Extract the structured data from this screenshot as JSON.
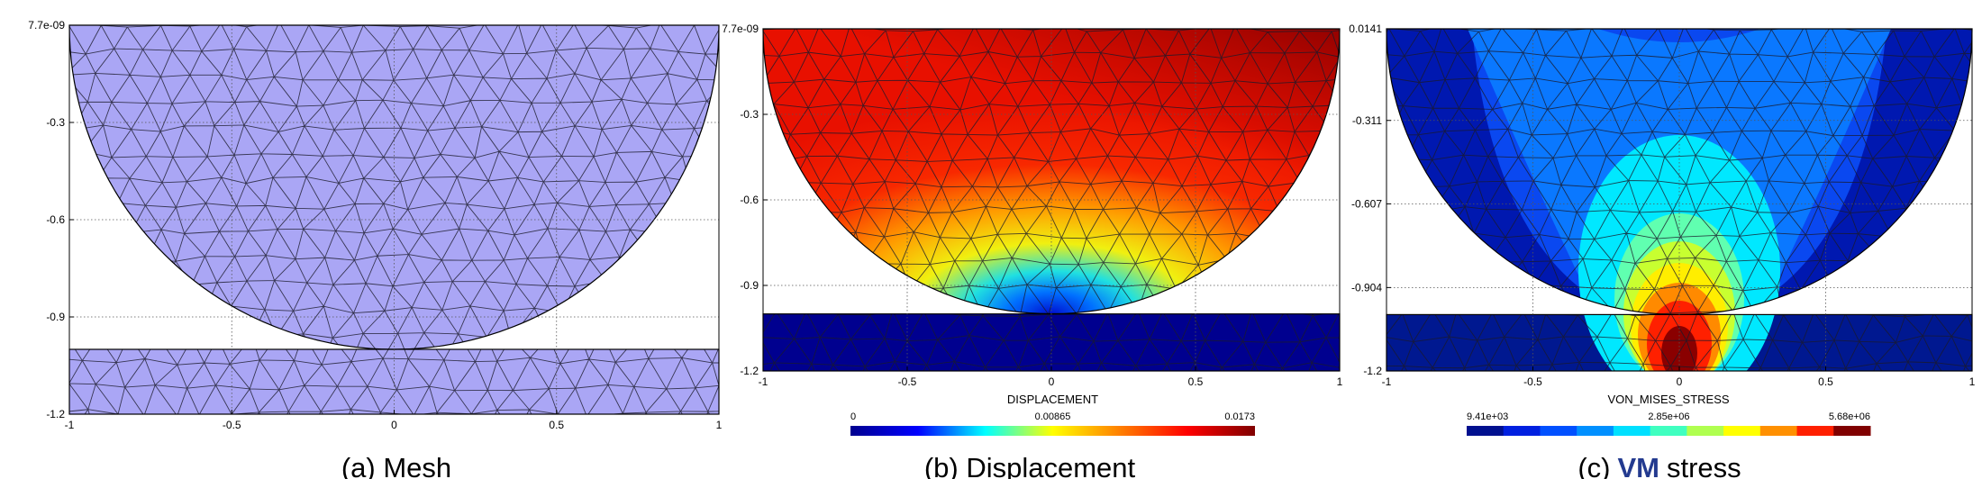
{
  "chart_data": [
    {
      "type": "mesh",
      "caption": "(a) Mesh",
      "color": "#aaa6f5",
      "grid": true,
      "xlim": [
        -1,
        1
      ],
      "ylim": [
        -1.2,
        7.7e-09
      ],
      "xticks": [
        -1,
        -0.5,
        0,
        0.5,
        1
      ],
      "yticks": [
        {
          "value": 7.7e-09,
          "label": "7.7e-09"
        },
        -0.3,
        -0.6,
        -0.9,
        -1.2
      ]
    },
    {
      "type": "contour",
      "caption": "(b) Displacement",
      "grid": true,
      "xlim": [
        -1,
        1
      ],
      "ylim": [
        -1.2,
        7.7e-09
      ],
      "xticks": [
        -1,
        -0.5,
        0,
        0.5,
        1
      ],
      "yticks": [
        {
          "value": 7.7e-09,
          "label": "7.7e-09"
        },
        -0.3,
        -0.6,
        -0.9,
        -1.2
      ],
      "colorbar_label": "DISPLACEMENT",
      "colorbar_ticks": [
        0,
        0.00865,
        0.0173
      ],
      "colorbar_colors": [
        "#00008f",
        "#0000ff",
        "#00ffff",
        "#ffff00",
        "#ff7f00",
        "#ff0000",
        "#800000"
      ],
      "colorbar_style": "continuous"
    },
    {
      "type": "contour",
      "caption": [
        "(c)",
        "VM",
        "stress"
      ],
      "caption_color": "#233a8f",
      "grid": true,
      "xlim": [
        -1,
        1
      ],
      "ylim": [
        -1.2,
        0.0141
      ],
      "xticks": [
        -1,
        -0.5,
        0,
        0.5,
        1
      ],
      "yticks": [
        0.0141,
        -0.311,
        -0.607,
        -0.904,
        -1.2
      ],
      "colorbar_label": "VON_MISES_STRESS",
      "colorbar_ticks": [
        {
          "value": 9410,
          "label": "9.41e+03"
        },
        {
          "value": 2850000,
          "label": "2.85e+06"
        },
        {
          "value": 5680000,
          "label": "5.68e+06"
        }
      ],
      "colorbar_colors": [
        "#00108f",
        "#0020e0",
        "#0050ff",
        "#0090ff",
        "#00e0ff",
        "#40ffc0",
        "#b0ff50",
        "#ffff00",
        "#ff9000",
        "#ff2000",
        "#800000"
      ],
      "colorbar_style": "discrete"
    }
  ]
}
